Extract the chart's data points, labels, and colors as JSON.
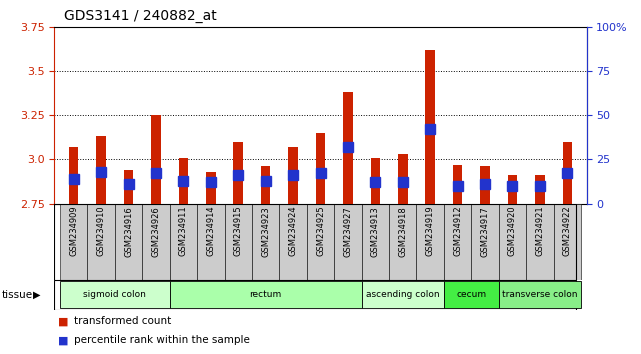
{
  "title": "GDS3141 / 240882_at",
  "samples": [
    "GSM234909",
    "GSM234910",
    "GSM234916",
    "GSM234926",
    "GSM234911",
    "GSM234914",
    "GSM234915",
    "GSM234923",
    "GSM234924",
    "GSM234925",
    "GSM234927",
    "GSM234913",
    "GSM234918",
    "GSM234919",
    "GSM234912",
    "GSM234917",
    "GSM234920",
    "GSM234921",
    "GSM234922"
  ],
  "transformed_count": [
    3.07,
    3.13,
    2.94,
    3.25,
    3.01,
    2.93,
    3.1,
    2.96,
    3.07,
    3.15,
    3.38,
    3.01,
    3.03,
    3.62,
    2.97,
    2.96,
    2.91,
    2.91,
    3.1
  ],
  "percentile_rank": [
    14,
    18,
    11,
    17,
    13,
    12,
    16,
    13,
    16,
    17,
    32,
    12,
    12,
    42,
    10,
    11,
    10,
    10,
    17
  ],
  "ymin": 2.75,
  "ymax": 3.75,
  "y_ticks_left": [
    2.75,
    3.0,
    3.25,
    3.5,
    3.75
  ],
  "y_ticks_right_vals": [
    0,
    25,
    50,
    75,
    100
  ],
  "y_ticks_right_labels": [
    "0",
    "25",
    "50",
    "75",
    "100%"
  ],
  "groups": [
    {
      "label": "sigmoid colon",
      "start": 0,
      "end": 3,
      "color": "#ccffcc"
    },
    {
      "label": "rectum",
      "start": 4,
      "end": 10,
      "color": "#aaffaa"
    },
    {
      "label": "ascending colon",
      "start": 11,
      "end": 13,
      "color": "#ccffcc"
    },
    {
      "label": "cecum",
      "start": 14,
      "end": 15,
      "color": "#44ee44"
    },
    {
      "label": "transverse colon",
      "start": 16,
      "end": 18,
      "color": "#88ee88"
    }
  ],
  "bar_color": "#cc2200",
  "dot_color": "#2233cc",
  "dotted_lines": [
    3.0,
    3.25,
    3.5
  ],
  "tick_bg_color": "#cccccc",
  "bar_width": 0.35,
  "dot_size": 7,
  "title_font": 10,
  "left_color": "#cc2200",
  "right_color": "#2233cc"
}
